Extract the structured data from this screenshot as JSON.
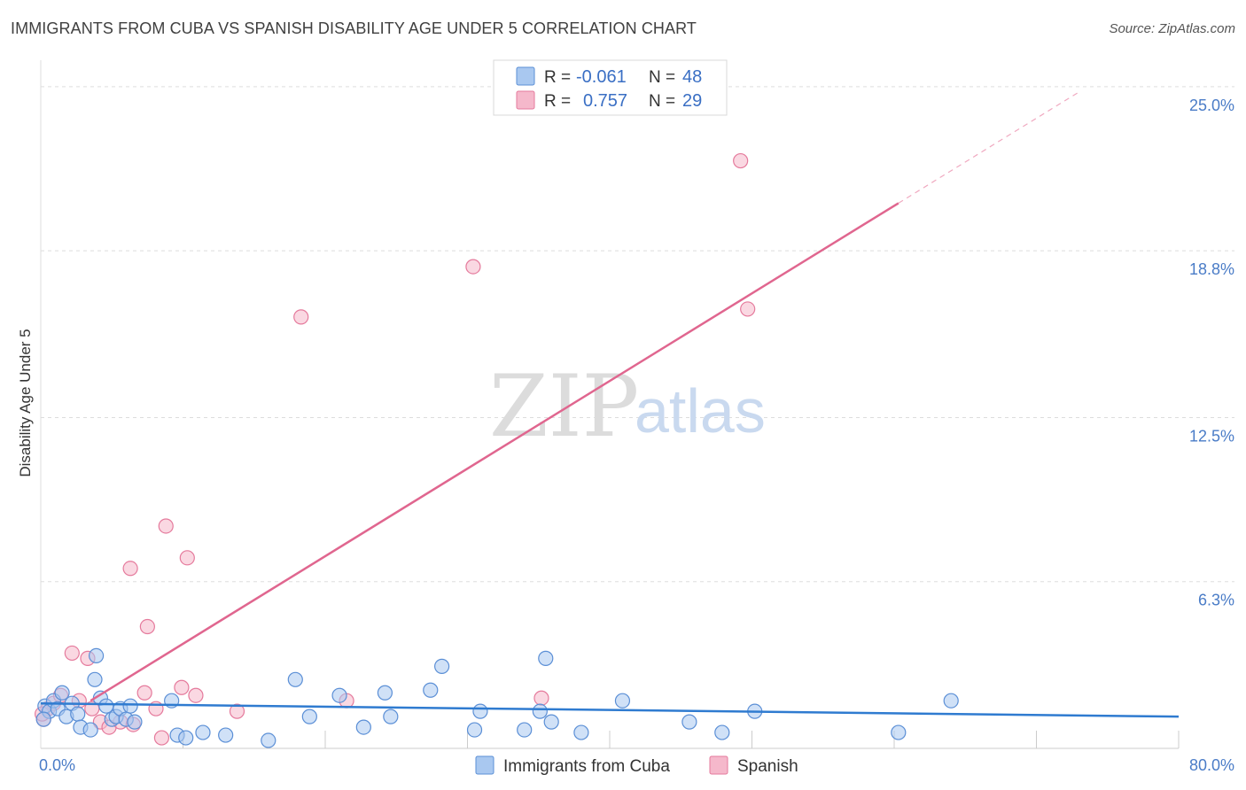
{
  "title": "IMMIGRANTS FROM CUBA VS SPANISH DISABILITY AGE UNDER 5 CORRELATION CHART",
  "source": "Source: ZipAtlas.com",
  "watermark": {
    "zip": "ZIP",
    "atlas": "atlas"
  },
  "colors": {
    "blue_fill": "#a9c8f0",
    "blue_stroke": "#5b8fd6",
    "blue_line": "#2f7bd0",
    "pink_fill": "#f5b8cb",
    "pink_stroke": "#e57a9c",
    "pink_line": "#e0668f",
    "grid": "#dddddd",
    "tick_text": "#4a7cc7"
  },
  "stats": {
    "row1": {
      "r_label": "R =",
      "r_value": "-0.061",
      "n_label": "N =",
      "n_value": "48"
    },
    "row2": {
      "r_label": "R =",
      "r_value": "0.757",
      "n_label": "N =",
      "n_value": "29"
    }
  },
  "chart_data": {
    "type": "scatter",
    "title": "IMMIGRANTS FROM CUBA VS SPANISH DISABILITY AGE UNDER 5 CORRELATION CHART",
    "xlabel": "",
    "ylabel": "Disability Age Under 5",
    "xlim": [
      0,
      80
    ],
    "ylim": [
      0,
      26
    ],
    "x_tick_labels": [
      "0.0%",
      "80.0%"
    ],
    "y_ticks": [
      6.3,
      12.5,
      18.8,
      25.0
    ],
    "y_tick_labels": [
      "6.3%",
      "12.5%",
      "18.8%",
      "25.0%"
    ],
    "legend": [
      "Immigrants from Cuba",
      "Spanish"
    ],
    "series": [
      {
        "name": "Immigrants from Cuba",
        "color": "#a9c8f0",
        "trend": {
          "x": [
            0,
            80
          ],
          "y": [
            1.7,
            1.2
          ]
        },
        "points": [
          [
            0.3,
            1.6
          ],
          [
            0.6,
            1.4
          ],
          [
            0.9,
            1.8
          ],
          [
            1.2,
            1.5
          ],
          [
            1.5,
            2.1
          ],
          [
            1.8,
            1.2
          ],
          [
            2.2,
            1.7
          ],
          [
            2.6,
            1.3
          ],
          [
            2.8,
            0.8
          ],
          [
            3.5,
            0.7
          ],
          [
            3.9,
            3.5
          ],
          [
            3.8,
            2.6
          ],
          [
            4.2,
            1.9
          ],
          [
            4.6,
            1.6
          ],
          [
            5.0,
            1.1
          ],
          [
            5.3,
            1.2
          ],
          [
            5.6,
            1.5
          ],
          [
            6.0,
            1.1
          ],
          [
            6.3,
            1.6
          ],
          [
            6.6,
            1.0
          ],
          [
            9.2,
            1.8
          ],
          [
            9.6,
            0.5
          ],
          [
            10.2,
            0.4
          ],
          [
            11.4,
            0.6
          ],
          [
            13.0,
            0.5
          ],
          [
            16.0,
            0.3
          ],
          [
            17.9,
            2.6
          ],
          [
            18.9,
            1.2
          ],
          [
            21.0,
            2.0
          ],
          [
            22.7,
            0.8
          ],
          [
            24.2,
            2.1
          ],
          [
            24.6,
            1.2
          ],
          [
            27.4,
            2.2
          ],
          [
            28.2,
            3.1
          ],
          [
            30.5,
            0.7
          ],
          [
            30.9,
            1.4
          ],
          [
            34.0,
            0.7
          ],
          [
            35.1,
            1.4
          ],
          [
            35.5,
            3.4
          ],
          [
            35.9,
            1.0
          ],
          [
            38.0,
            0.6
          ],
          [
            40.9,
            1.8
          ],
          [
            45.6,
            1.0
          ],
          [
            47.9,
            0.6
          ],
          [
            50.2,
            1.4
          ],
          [
            60.3,
            0.6
          ],
          [
            64.0,
            1.8
          ],
          [
            0.2,
            1.1
          ]
        ]
      },
      {
        "name": "Spanish",
        "color": "#f5b8cb",
        "trend": {
          "x": [
            3.5,
            60.3
          ],
          "y": [
            1.8,
            20.6
          ]
        },
        "trend_extension": {
          "x": [
            60.3,
            73.0
          ],
          "y": [
            20.6,
            24.8
          ]
        },
        "points": [
          [
            0.2,
            1.1
          ],
          [
            0.5,
            1.5
          ],
          [
            0.9,
            1.7
          ],
          [
            1.4,
            2.0
          ],
          [
            2.2,
            3.6
          ],
          [
            2.7,
            1.8
          ],
          [
            3.3,
            3.4
          ],
          [
            3.6,
            1.5
          ],
          [
            4.2,
            1.0
          ],
          [
            4.8,
            0.8
          ],
          [
            5.6,
            1.0
          ],
          [
            6.3,
            6.8
          ],
          [
            6.5,
            0.9
          ],
          [
            7.3,
            2.1
          ],
          [
            7.5,
            4.6
          ],
          [
            8.1,
            1.5
          ],
          [
            8.5,
            0.4
          ],
          [
            8.8,
            8.4
          ],
          [
            9.9,
            2.3
          ],
          [
            10.3,
            7.2
          ],
          [
            10.9,
            2.0
          ],
          [
            13.8,
            1.4
          ],
          [
            18.3,
            16.3
          ],
          [
            21.5,
            1.8
          ],
          [
            30.4,
            18.2
          ],
          [
            35.2,
            1.9
          ],
          [
            49.7,
            16.6
          ],
          [
            49.2,
            22.2
          ],
          [
            0.1,
            1.3
          ]
        ]
      }
    ]
  }
}
